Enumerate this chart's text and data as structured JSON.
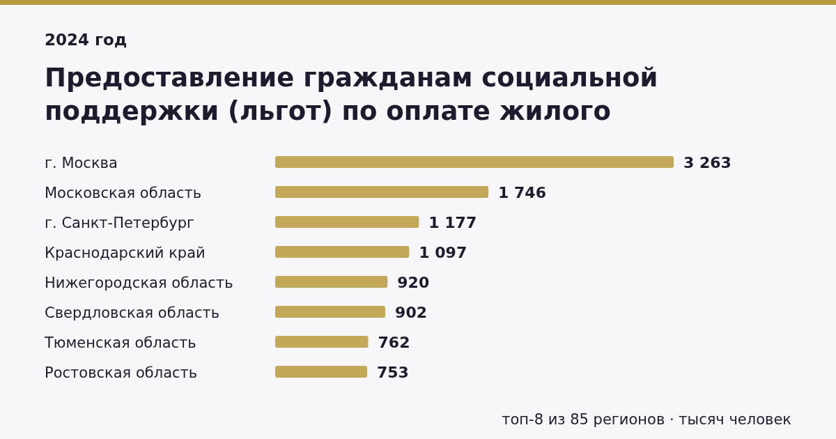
{
  "chart_data": {
    "type": "bar",
    "title": "Предоставление гражданам социальной поддержки (льгот) по оплате жилого",
    "subtitle": "2024 год",
    "orientation": "horizontal",
    "categories": [
      "г. Москва",
      "Московская область",
      "г. Санкт-Петербург",
      "Краснодарский край",
      "Нижегородская область",
      "Свердловская область",
      "Тюменская область",
      "Ростовская область"
    ],
    "values": [
      3263,
      1746,
      1177,
      1097,
      920,
      902,
      762,
      753
    ],
    "value_labels": [
      "3 263",
      "1 746",
      "1 177",
      "1 097",
      "920",
      "902",
      "762",
      "753"
    ],
    "color": "#c4a85a",
    "annotations": [
      "топ-8 из 85 регионов · тысяч человек"
    ]
  }
}
